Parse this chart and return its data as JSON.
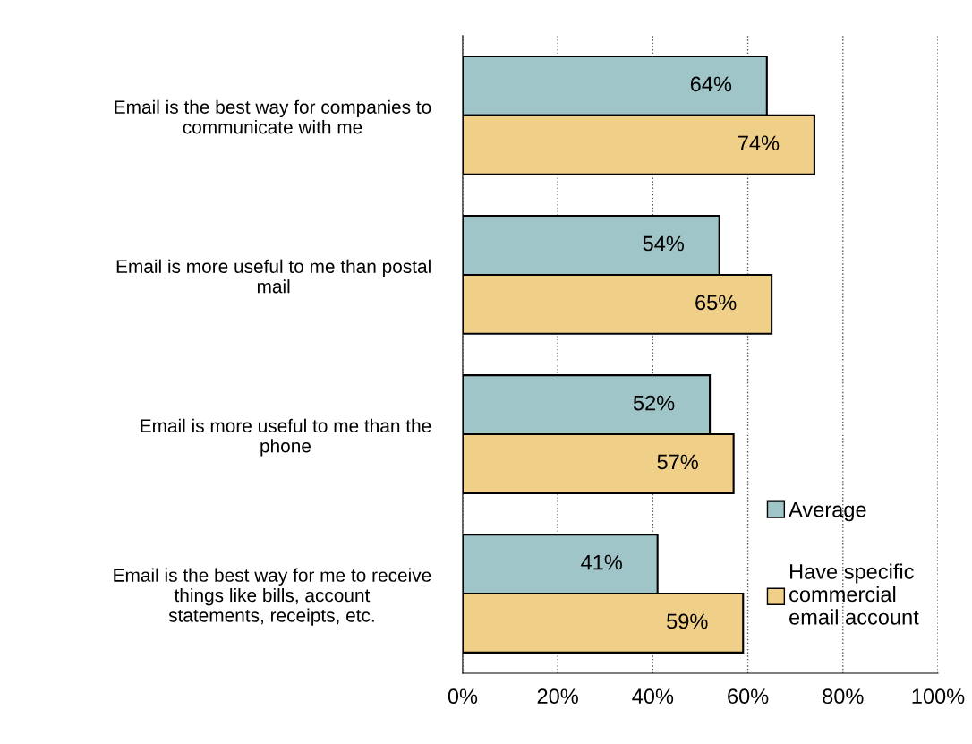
{
  "chart_data": {
    "type": "bar",
    "orientation": "horizontal",
    "categories": [
      "Email is the best way for companies to\ncommunicate with me",
      "Email is more useful to me than postal\nmail",
      "Email is more useful to me than the\nphone",
      "Email is the best way for me to receive\nthings like bills, account\nstatements, receipts, etc."
    ],
    "series": [
      {
        "name": "Average",
        "color": "#9fc5c8",
        "values": [
          64,
          54,
          52,
          41
        ],
        "value_labels": [
          "64%",
          "54%",
          "52%",
          "41%"
        ]
      },
      {
        "name": "Have specific\ncommercial\nemail account",
        "color": "#f0cf88",
        "values": [
          74,
          65,
          57,
          59
        ],
        "value_labels": [
          "74%",
          "65%",
          "57%",
          "59%"
        ]
      }
    ],
    "xlim": [
      0,
      100
    ],
    "xticks": [
      {
        "value": 0,
        "label": "0%"
      },
      {
        "value": 20,
        "label": "20%"
      },
      {
        "value": 40,
        "label": "40%"
      },
      {
        "value": 60,
        "label": "60%"
      },
      {
        "value": 80,
        "label": "80%"
      },
      {
        "value": 100,
        "label": "100%"
      }
    ],
    "grid": "x",
    "legend": "bottom right"
  }
}
